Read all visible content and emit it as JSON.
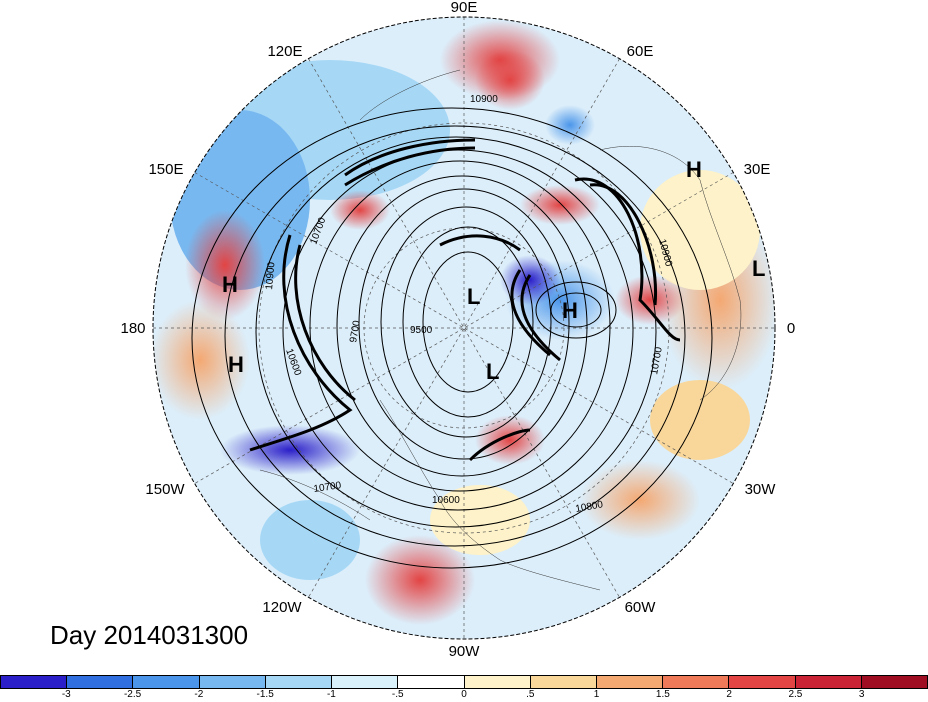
{
  "title": "Day 2014031300",
  "longitude_labels": {
    "lon_90E": "90E",
    "lon_60E": "60E",
    "lon_30E": "30E",
    "lon_0": "0",
    "lon_30W": "30W",
    "lon_60W": "60W",
    "lon_90W": "90W",
    "lon_120W": "120W",
    "lon_150W": "150W",
    "lon_180": "180",
    "lon_150E": "150E",
    "lon_120E": "120E"
  },
  "contour_labels": [
    "10900",
    "10700",
    "10900",
    "10900",
    "10700",
    "10800",
    "10600",
    "10700",
    "9700",
    "9500",
    "10900",
    "10600"
  ],
  "pressure_centers": [
    "H",
    "H",
    "H",
    "L",
    "L",
    "H",
    "L"
  ],
  "colorbar": {
    "ticks": [
      "-3",
      "-2.5",
      "-2",
      "-1.5",
      "-1",
      "-.5",
      "0",
      ".5",
      "1",
      "1.5",
      "2",
      "2.5",
      "3"
    ],
    "colors": [
      "#2b1fc9",
      "#2f6fe0",
      "#4b96ea",
      "#78b8f0",
      "#a6d8f6",
      "#d8f1fb",
      "#ffffff",
      "#fdf2c9",
      "#f9d79a",
      "#f4a872",
      "#ee7a5a",
      "#e34444",
      "#c92335",
      "#9e0d21"
    ]
  },
  "chart_data": {
    "type": "heatmap",
    "projection": "north polar stereographic",
    "title": "Day 2014031300",
    "contour_labels": [
      "10900",
      "10700",
      "10800",
      "10600",
      "9700",
      "9500"
    ],
    "colorbar_range": [
      -3.5,
      3.5
    ],
    "colorbar_ticks": [
      -3,
      -2.5,
      -2,
      -1.5,
      -1,
      -0.5,
      0,
      0.5,
      1,
      1.5,
      2,
      2.5,
      3
    ]
  }
}
